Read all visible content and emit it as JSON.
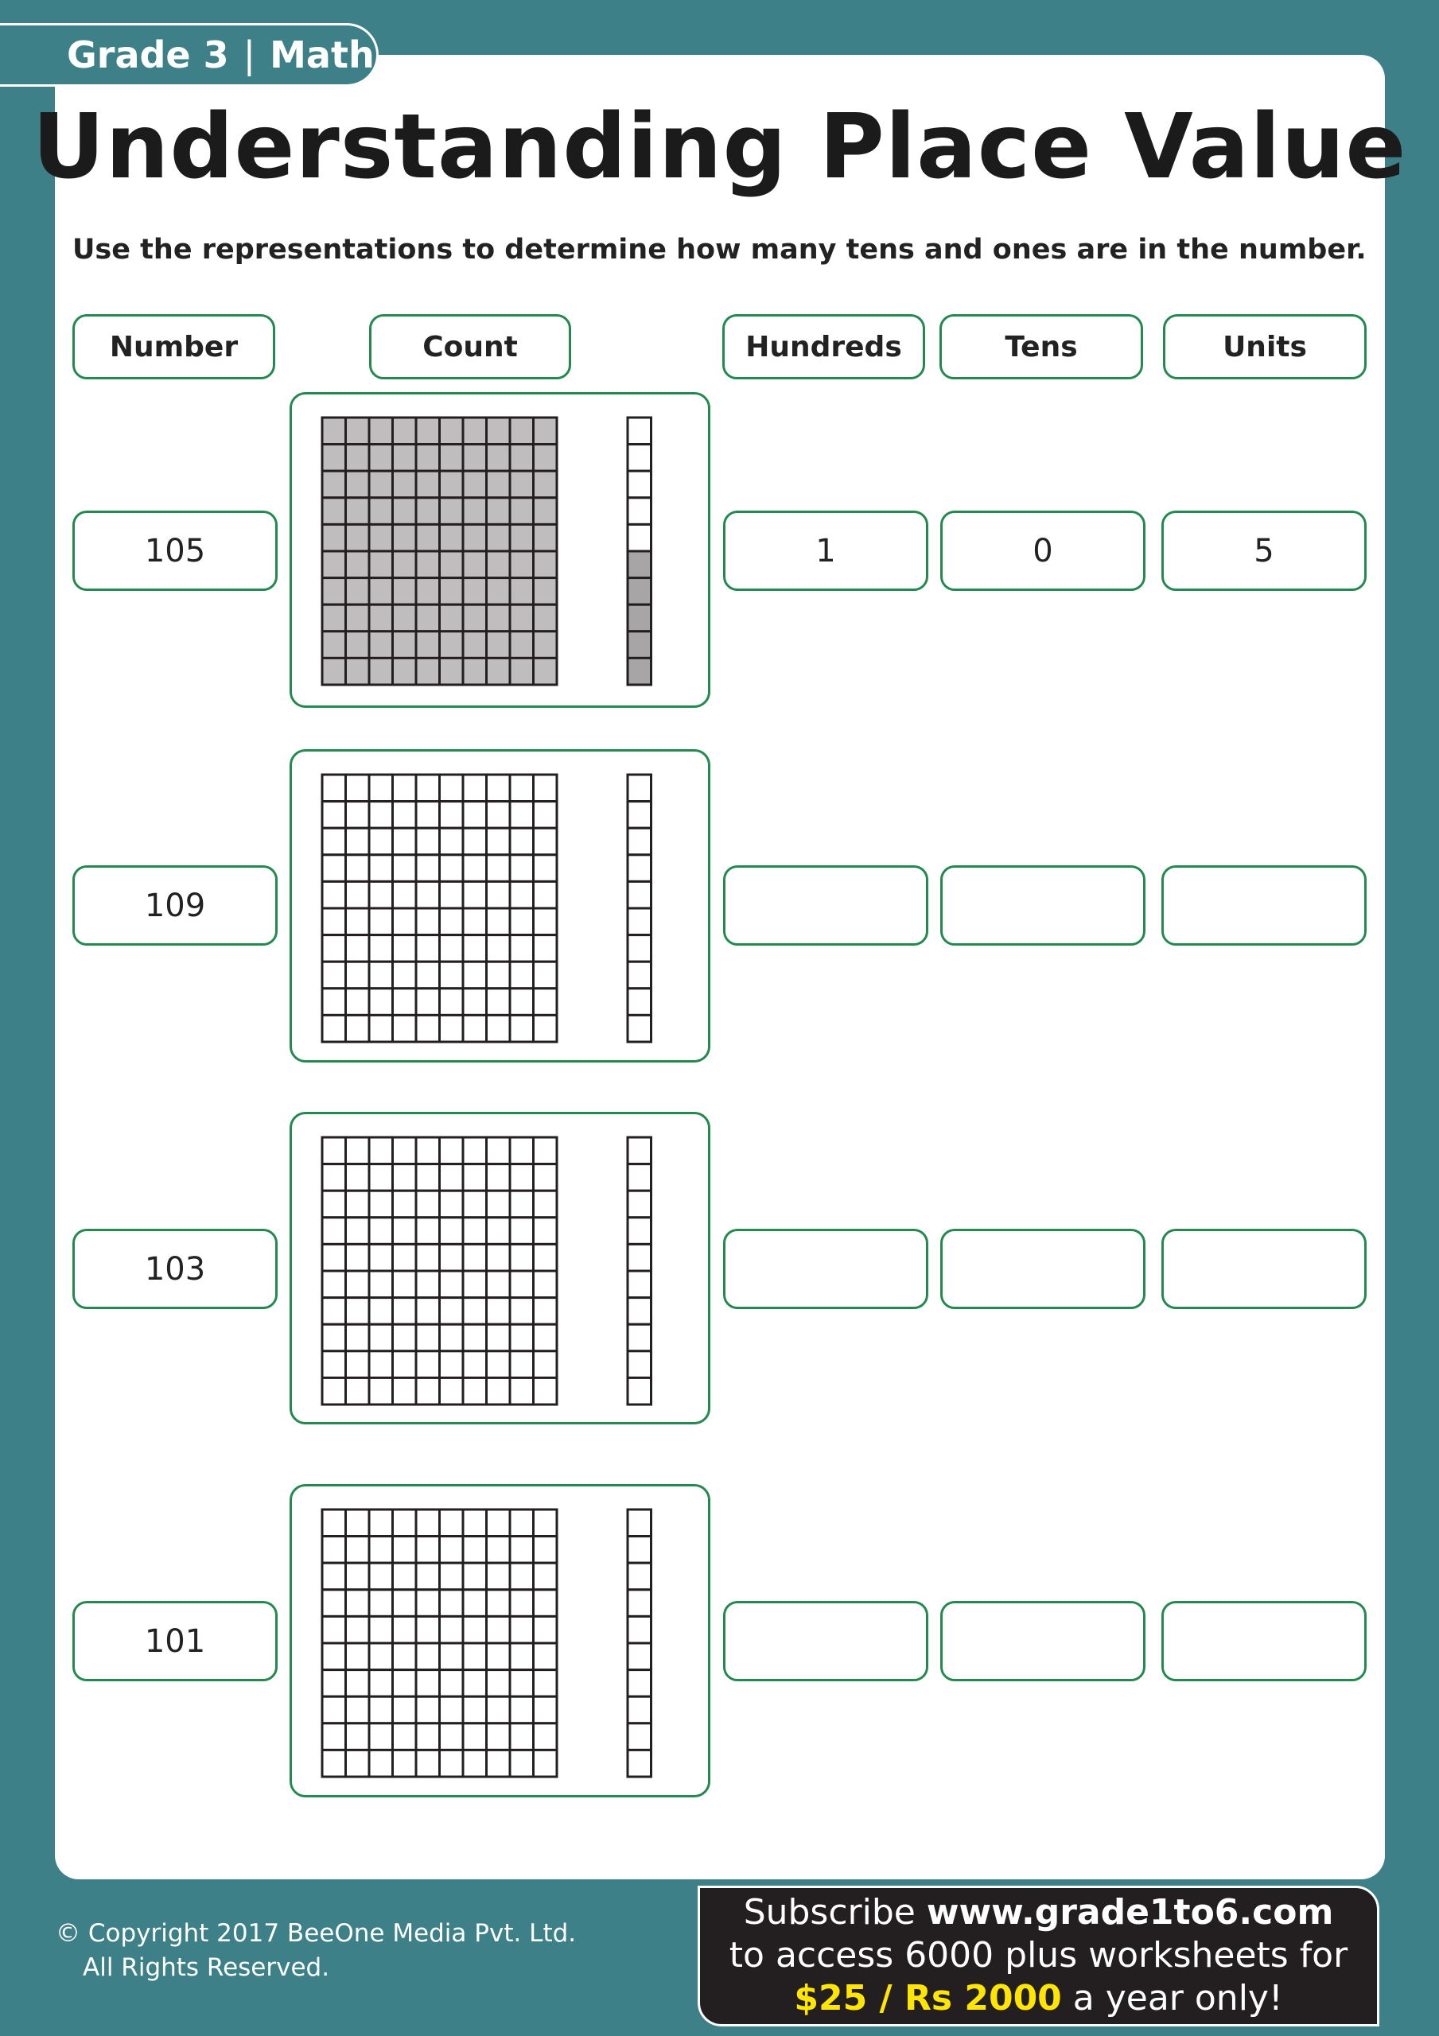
{
  "header": {
    "grade": "Grade 3",
    "separator": "|",
    "subject": "Math"
  },
  "title": "Understanding Place Value",
  "instruction": "Use the representations to determine how many tens and ones are in the number.",
  "columns": {
    "number": "Number",
    "count": "Count",
    "hundreds": "Hundreds",
    "tens": "Tens",
    "units": "Units"
  },
  "colors": {
    "background": "#3e8087",
    "border": "#23894f",
    "hundred_fill": "#c0bdbe",
    "ones_fill": "#a7a5a6",
    "promo_bg": "#231f20",
    "price": "#ffe500"
  },
  "rows": [
    {
      "number": "105",
      "hundreds": "1",
      "tens": "0",
      "units": "5",
      "shaded_hundreds": 100,
      "shaded_ones": 5
    },
    {
      "number": "109",
      "hundreds": "",
      "tens": "",
      "units": "",
      "shaded_hundreds": 0,
      "shaded_ones": 0
    },
    {
      "number": "103",
      "hundreds": "",
      "tens": "",
      "units": "",
      "shaded_hundreds": 0,
      "shaded_ones": 0
    },
    {
      "number": "101",
      "hundreds": "",
      "tens": "",
      "units": "",
      "shaded_hundreds": 0,
      "shaded_ones": 0
    }
  ],
  "footer": {
    "copyright": "© Copyright 2017 BeeOne Media Pvt. Ltd.",
    "rights": "All Rights Reserved.",
    "promo_subscribe": "Subscribe ",
    "promo_url": "www.grade1to6.com",
    "promo_line2": "to access 6000 plus worksheets for",
    "promo_price": "$25 / Rs 2000",
    "promo_tail": " a year only!"
  }
}
